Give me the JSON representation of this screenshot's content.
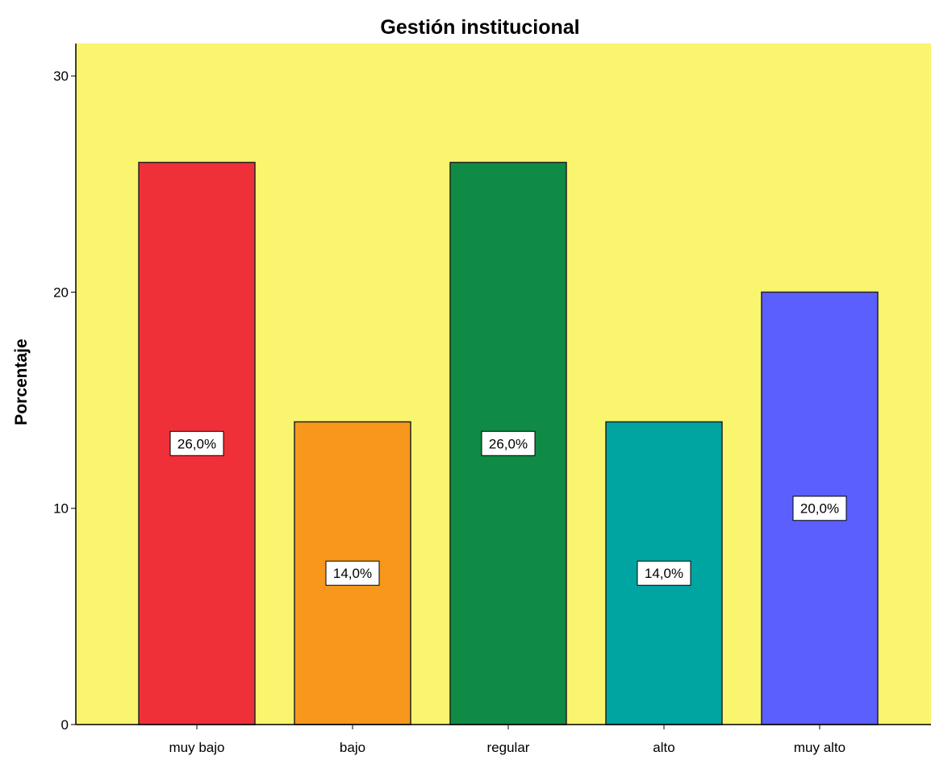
{
  "chart_data": {
    "type": "bar",
    "title": "Gestión institucional",
    "xlabel": "",
    "ylabel": "Porcentaje",
    "categories": [
      "muy bajo",
      "bajo",
      "regular",
      "alto",
      "muy alto"
    ],
    "values": [
      26.0,
      14.0,
      26.0,
      14.0,
      20.0
    ],
    "data_labels": [
      "26,0%",
      "14,0%",
      "26,0%",
      "14,0%",
      "20,0%"
    ],
    "ylim": [
      0,
      31.5
    ],
    "yticks": [
      0,
      10,
      20,
      30
    ],
    "ytick_labels": [
      "0",
      "10",
      "20",
      "30"
    ],
    "grid": false,
    "legend": "none",
    "colors": {
      "plot_background": "#f9f56f",
      "bars": [
        "#ef3039",
        "#f7981d",
        "#0f8b45",
        "#00a4a1",
        "#5a5ffd"
      ],
      "bar_outline": "#222222",
      "label_box": "#ffffff"
    }
  }
}
